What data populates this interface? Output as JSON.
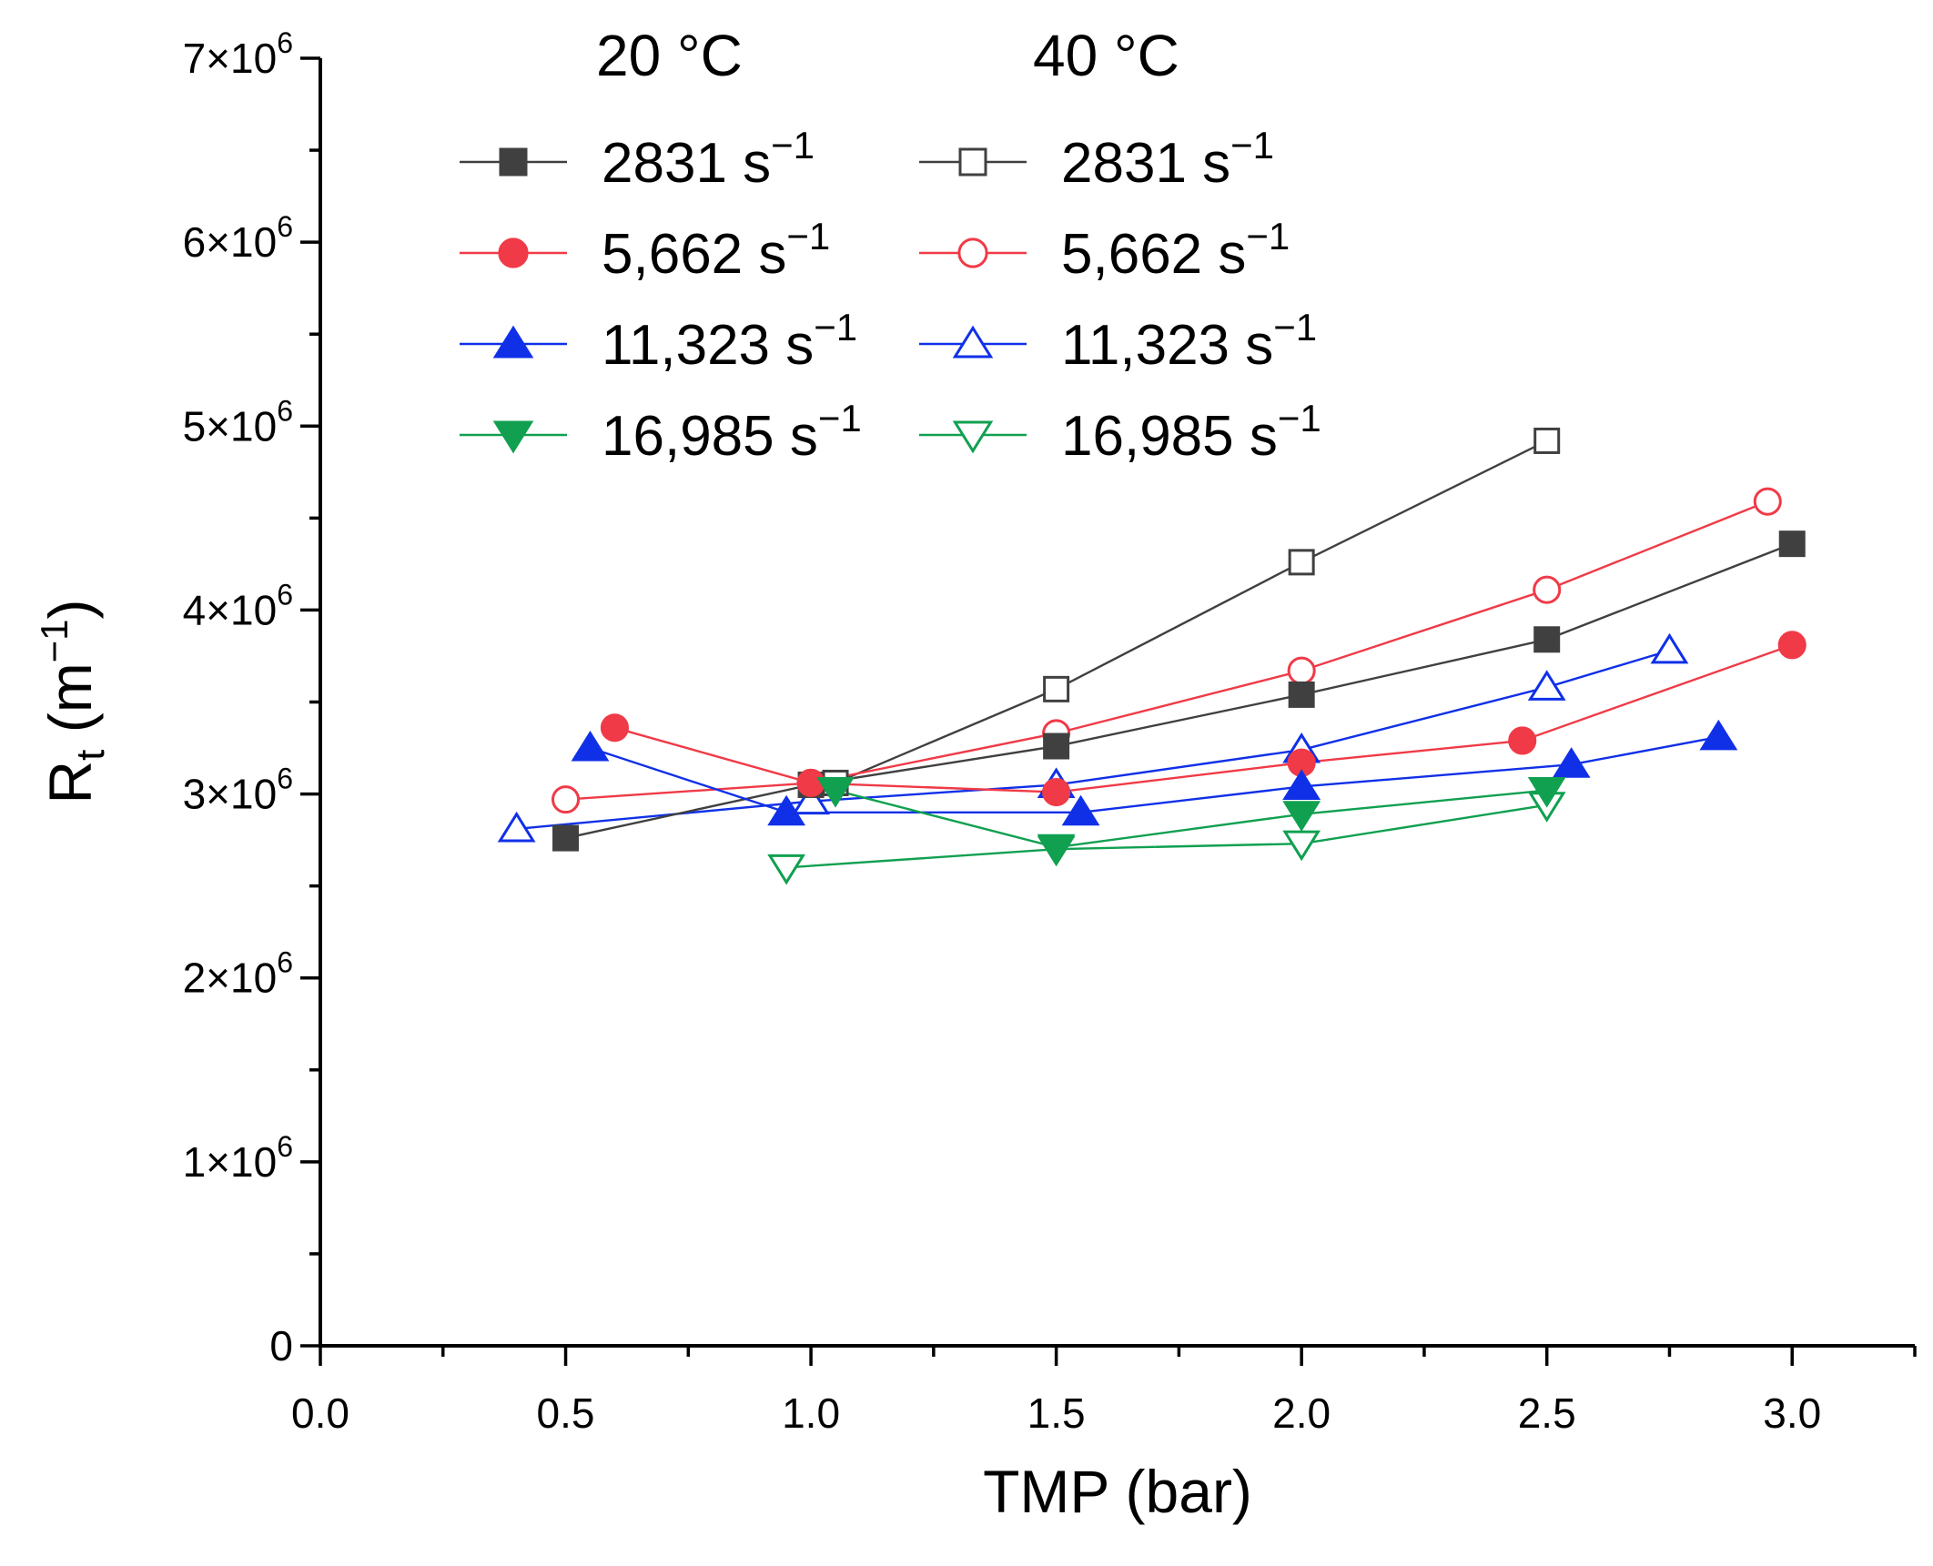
{
  "chart_data": {
    "type": "line",
    "xlabel": "TMP (bar)",
    "ylabel_main": "R",
    "ylabel_sub": "t",
    "ylabel_unit_open": " (m",
    "ylabel_unit_sup": "−1",
    "ylabel_unit_close": ")",
    "xlim": [
      0,
      3.25
    ],
    "ylim": [
      0,
      7000000
    ],
    "x_ticks": [
      {
        "value": 0,
        "label": "0.0"
      },
      {
        "value": 0.5,
        "label": "0.5"
      },
      {
        "value": 1.0,
        "label": "1.0"
      },
      {
        "value": 1.5,
        "label": "1.5"
      },
      {
        "value": 2.0,
        "label": "2.0"
      },
      {
        "value": 2.5,
        "label": "2.5"
      },
      {
        "value": 3.0,
        "label": "3.0"
      }
    ],
    "y_ticks": [
      {
        "value": 0,
        "mantissa": "0",
        "exp": ""
      },
      {
        "value": 1000000,
        "mantissa": "1×10",
        "exp": "6"
      },
      {
        "value": 2000000,
        "mantissa": "2×10",
        "exp": "6"
      },
      {
        "value": 3000000,
        "mantissa": "3×10",
        "exp": "6"
      },
      {
        "value": 4000000,
        "mantissa": "4×10",
        "exp": "6"
      },
      {
        "value": 5000000,
        "mantissa": "5×10",
        "exp": "6"
      },
      {
        "value": 6000000,
        "mantissa": "6×10",
        "exp": "6"
      },
      {
        "value": 7000000,
        "mantissa": "7×10",
        "exp": "6"
      }
    ],
    "legend": {
      "placement": "top",
      "column_headers": [
        "20 °C",
        "40 °C"
      ]
    },
    "series": [
      {
        "name": "2831 s",
        "name_sup": "−1",
        "group": "20 °C",
        "color": "#404040",
        "marker": "square",
        "filled": true,
        "x": [
          0.5,
          1.0,
          1.5,
          2.0,
          2.5,
          3.0
        ],
        "y": [
          2760000,
          3050000,
          3260000,
          3540000,
          3840000,
          4360000
        ]
      },
      {
        "name": "5,662 s",
        "name_sup": "−1",
        "group": "20 °C",
        "color": "#f03a47",
        "marker": "circle",
        "filled": true,
        "x": [
          0.6,
          1.0,
          1.5,
          2.0,
          2.45,
          3.0
        ],
        "y": [
          3360000,
          3060000,
          3010000,
          3170000,
          3290000,
          3810000
        ]
      },
      {
        "name": "11,323 s",
        "name_sup": "−1",
        "group": "20 °C",
        "color": "#1030e8",
        "marker": "triangle-up",
        "filled": true,
        "x": [
          0.55,
          0.95,
          1.55,
          2.0,
          2.55,
          2.85
        ],
        "y": [
          3250000,
          2900000,
          2900000,
          3040000,
          3160000,
          3310000
        ]
      },
      {
        "name": "16,985 s",
        "name_sup": "−1",
        "group": "20 °C",
        "color": "#10a050",
        "marker": "triangle-down",
        "filled": true,
        "x": [
          1.05,
          1.5,
          2.0,
          2.5
        ],
        "y": [
          3020000,
          2710000,
          2890000,
          3020000
        ]
      },
      {
        "name": "2831 s",
        "name_sup": "−1",
        "group": "40 °C",
        "color": "#404040",
        "marker": "square",
        "filled": false,
        "x": [
          1.05,
          1.5,
          2.0,
          2.5
        ],
        "y": [
          3060000,
          3570000,
          4260000,
          4920000
        ]
      },
      {
        "name": "5,662 s",
        "name_sup": "−1",
        "group": "40 °C",
        "color": "#f03a47",
        "marker": "circle",
        "filled": false,
        "x": [
          0.5,
          1.0,
          1.5,
          2.0,
          2.5,
          2.95
        ],
        "y": [
          2970000,
          3060000,
          3330000,
          3670000,
          4110000,
          4590000
        ]
      },
      {
        "name": "11,323 s",
        "name_sup": "−1",
        "group": "40 °C",
        "color": "#1030e8",
        "marker": "triangle-up",
        "filled": false,
        "x": [
          0.4,
          1.0,
          1.5,
          2.0,
          2.5,
          2.75
        ],
        "y": [
          2810000,
          2960000,
          3050000,
          3240000,
          3580000,
          3780000
        ]
      },
      {
        "name": "16,985 s",
        "name_sup": "−1",
        "group": "40 °C",
        "color": "#10a050",
        "marker": "triangle-down",
        "filled": false,
        "x": [
          0.95,
          1.5,
          2.0,
          2.5
        ],
        "y": [
          2600000,
          2700000,
          2730000,
          2940000
        ]
      }
    ]
  }
}
